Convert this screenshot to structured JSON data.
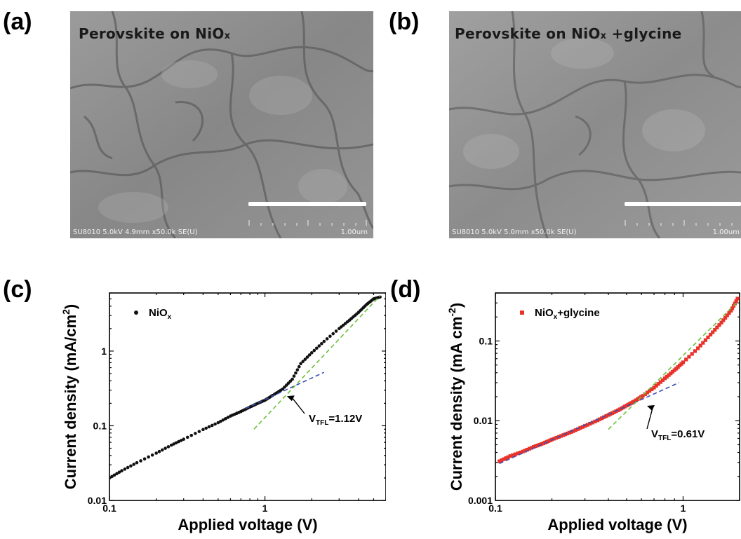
{
  "panels": {
    "a": {
      "letter": "(a)",
      "sem_title": "Perovskite on NiO",
      "sem_title_sub": "x",
      "footer_left": "SU8010 5.0kV 4.9mm x50.0k SE(U)",
      "footer_right": "1.00um"
    },
    "b": {
      "letter": "(b)",
      "sem_title": "Perovskite on NiO",
      "sem_title_sub": "x",
      "sem_title_tail": " +glycine",
      "footer_left": "SU8010 5.0kV 5.0mm x50.0k SE(U)",
      "footer_right": "1.00um"
    },
    "c": {
      "letter": "(c)"
    },
    "d": {
      "letter": "(d)"
    }
  },
  "colors": {
    "nio_series": "#111111",
    "glycine_series": "#e8322a",
    "fit_ohmic": "#3a4fb5",
    "fit_tfl": "#6bbf3a",
    "sem_bg": "#8f8f8f"
  },
  "chart_data": [
    {
      "type": "scatter",
      "panel": "c",
      "xscale": "log",
      "yscale": "log",
      "xlim": [
        0.1,
        6
      ],
      "ylim": [
        0.01,
        6
      ],
      "xlabel": "Applied voltage (V)",
      "ylabel": "Current density (mA/cm",
      "ylabel_sup": "2",
      "ylabel_tail": ")",
      "xticks": [
        {
          "v": 0.1,
          "label": "0.1"
        },
        {
          "v": 1,
          "label": "1"
        }
      ],
      "yticks": [
        {
          "v": 0.01,
          "label": "0.01"
        },
        {
          "v": 0.1,
          "label": "0.1"
        },
        {
          "v": 1,
          "label": "1"
        }
      ],
      "legend": {
        "label": "NiO",
        "sub": "x"
      },
      "annotation": {
        "text": "V",
        "sub": "TFL",
        "tail": "=1.12V",
        "x": 1.3,
        "y": 0.26
      },
      "series": [
        {
          "name": "NiOx",
          "marker": "circle",
          "color": "#111111",
          "x": [
            0.1,
            0.12,
            0.15,
            0.2,
            0.25,
            0.3,
            0.4,
            0.5,
            0.6,
            0.7,
            0.8,
            0.9,
            1.0,
            1.12,
            1.3,
            1.5,
            1.7,
            2.0,
            2.4,
            3.0,
            3.5,
            4.0,
            4.5,
            5.0,
            5.5
          ],
          "y": [
            0.02,
            0.025,
            0.032,
            0.043,
            0.055,
            0.066,
            0.089,
            0.11,
            0.135,
            0.155,
            0.178,
            0.2,
            0.22,
            0.255,
            0.31,
            0.42,
            0.68,
            0.95,
            1.35,
            2.0,
            2.6,
            3.3,
            4.2,
            5.0,
            5.3
          ]
        }
      ],
      "fits": [
        {
          "name": "ohmic",
          "style": "dashed",
          "color": "#3a4fb5",
          "x": [
            0.75,
            2.4
          ],
          "y": [
            0.17,
            0.52
          ]
        },
        {
          "name": "tfl",
          "style": "dashed",
          "color": "#6bbf3a",
          "x": [
            0.85,
            5.5
          ],
          "y": [
            0.09,
            5.5
          ]
        }
      ]
    },
    {
      "type": "scatter",
      "panel": "d",
      "xscale": "log",
      "yscale": "log",
      "xlim": [
        0.1,
        2
      ],
      "ylim": [
        0.001,
        0.4
      ],
      "xlabel": "Applied voltage (V)",
      "ylabel": "Current density (mA cm",
      "ylabel_sup": "-2",
      "ylabel_tail": ")",
      "xticks": [
        {
          "v": 0.1,
          "label": "0.1"
        },
        {
          "v": 1,
          "label": "1"
        }
      ],
      "yticks": [
        {
          "v": 0.001,
          "label": "0.001"
        },
        {
          "v": 0.01,
          "label": "0.01"
        },
        {
          "v": 0.1,
          "label": "0.1"
        }
      ],
      "legend": {
        "label": "NiO",
        "sub": "x",
        "tail": "+glycine"
      },
      "annotation": {
        "text": "V",
        "sub": "TFL",
        "tail": "=0.61V",
        "x": 0.61,
        "y": 0.016
      },
      "series": [
        {
          "name": "NiOx+glycine",
          "marker": "square",
          "color": "#e8322a",
          "x": [
            0.105,
            0.12,
            0.14,
            0.16,
            0.18,
            0.2,
            0.23,
            0.26,
            0.3,
            0.35,
            0.4,
            0.45,
            0.5,
            0.55,
            0.61,
            0.7,
            0.8,
            0.9,
            1.0,
            1.2,
            1.4,
            1.6,
            1.8,
            1.95
          ],
          "y": [
            0.0031,
            0.0036,
            0.0041,
            0.0047,
            0.0052,
            0.0058,
            0.0066,
            0.0074,
            0.0086,
            0.0101,
            0.0118,
            0.0135,
            0.0155,
            0.0175,
            0.0205,
            0.026,
            0.034,
            0.043,
            0.054,
            0.081,
            0.12,
            0.17,
            0.24,
            0.34
          ]
        }
      ],
      "fits": [
        {
          "name": "ohmic",
          "style": "dashed",
          "color": "#3a4fb5",
          "x": [
            0.105,
            0.95
          ],
          "y": [
            0.0029,
            0.03
          ]
        },
        {
          "name": "tfl",
          "style": "dashed",
          "color": "#6bbf3a",
          "x": [
            0.4,
            1.95
          ],
          "y": [
            0.0078,
            0.31
          ]
        }
      ]
    }
  ]
}
